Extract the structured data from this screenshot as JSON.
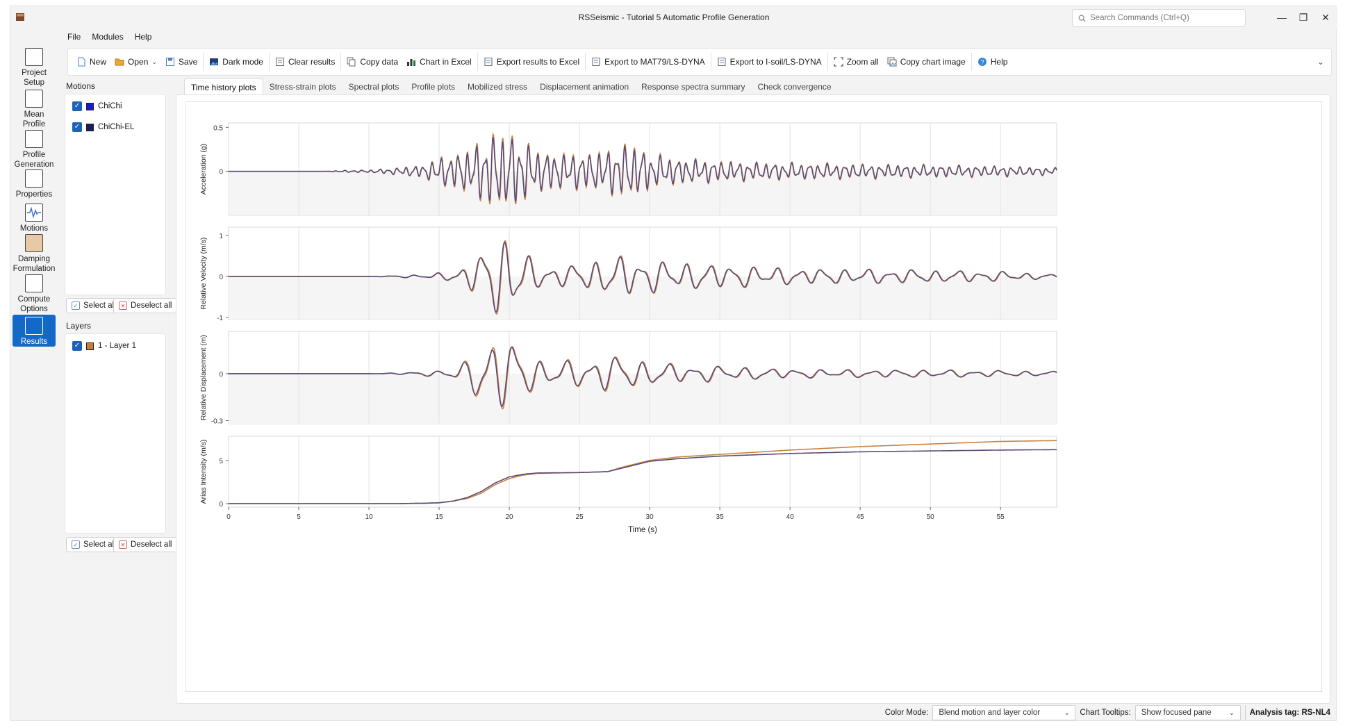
{
  "window": {
    "title": "RSSeismic - Tutorial 5 Automatic Profile Generation",
    "search_placeholder": "Search Commands (Ctrl+Q)",
    "minimize": "—",
    "restore": "❐",
    "close": "✕"
  },
  "menu": [
    "File",
    "Modules",
    "Help"
  ],
  "toolbar": {
    "new": "New",
    "open": "Open",
    "save": "Save",
    "dark_mode": "Dark mode",
    "clear_results": "Clear results",
    "copy_data": "Copy data",
    "chart_in_excel": "Chart in Excel",
    "export_excel": "Export results to Excel",
    "export_mat79": "Export to MAT79/LS-DYNA",
    "export_isoil": "Export to I-soil/LS-DYNA",
    "zoom_all": "Zoom all",
    "copy_chart_image": "Copy chart image",
    "help": "Help"
  },
  "nav": [
    {
      "label1": "Project",
      "label2": "Setup"
    },
    {
      "label1": "Mean",
      "label2": "Profile"
    },
    {
      "label1": "Profile",
      "label2": "Generation"
    },
    {
      "label1": "Properties",
      "label2": ""
    },
    {
      "label1": "Motions",
      "label2": ""
    },
    {
      "label1": "Damping",
      "label2": "Formulation"
    },
    {
      "label1": "Compute",
      "label2": "Options"
    },
    {
      "label1": "Results",
      "label2": ""
    }
  ],
  "motions_panel": {
    "title": "Motions",
    "items": [
      {
        "label": "ChiChi",
        "color": "#1a1ad6"
      },
      {
        "label": "ChiChi-EL",
        "color": "#1b1b5e"
      }
    ],
    "select_all": "Select all",
    "deselect_all": "Deselect all"
  },
  "layers_panel": {
    "title": "Layers",
    "items": [
      {
        "label": "1 - Layer 1",
        "color": "#c87b3e"
      }
    ],
    "select_all": "Select all",
    "deselect_all": "Deselect all"
  },
  "tabs": [
    "Time history plots",
    "Stress-strain plots",
    "Spectral plots",
    "Profile plots",
    "Mobilized stress",
    "Displacement animation",
    "Response spectra summary",
    "Check convergence"
  ],
  "status": {
    "color_mode_label": "Color Mode:",
    "color_mode_value": "Blend motion and layer color",
    "tooltips_label": "Chart Tooltips:",
    "tooltips_value": "Show focused pane",
    "analysis_tag": "Analysis tag: RS-NL4"
  },
  "colors": {
    "accent": "#1468c6",
    "series_chichi": "#c8823f",
    "series_chichi_el": "#5a4a78"
  },
  "chart_data": {
    "type": "line",
    "xlabel": "Time (s)",
    "xlim": [
      0,
      59
    ],
    "x_ticks": [
      0,
      5,
      10,
      15,
      20,
      25,
      30,
      35,
      40,
      45,
      50,
      55
    ],
    "series_names": [
      "ChiChi",
      "ChiChi-EL"
    ],
    "panels": [
      {
        "ylabel": "Acceleration (g)",
        "ylim": [
          -0.5,
          0.55
        ],
        "ytick_labels": [
          {
            "v": 0.5,
            "t": "0.5"
          },
          {
            "v": 0,
            "t": "0"
          }
        ],
        "env": [
          [
            0,
            0
          ],
          [
            7,
            0
          ],
          [
            8,
            0.01
          ],
          [
            10,
            0.015
          ],
          [
            12,
            0.04
          ],
          [
            14,
            0.08
          ],
          [
            15,
            0.16
          ],
          [
            16,
            0.2
          ],
          [
            17,
            0.25
          ],
          [
            18,
            0.35
          ],
          [
            19,
            0.45
          ],
          [
            20,
            0.45
          ],
          [
            21,
            0.35
          ],
          [
            22,
            0.25
          ],
          [
            24,
            0.2
          ],
          [
            26,
            0.22
          ],
          [
            27,
            0.25
          ],
          [
            28,
            0.3
          ],
          [
            29,
            0.32
          ],
          [
            30,
            0.2
          ],
          [
            32,
            0.15
          ],
          [
            35,
            0.12
          ],
          [
            38,
            0.1
          ],
          [
            42,
            0.09
          ],
          [
            46,
            0.08
          ],
          [
            50,
            0.07
          ],
          [
            55,
            0.06
          ],
          [
            59,
            0.04
          ]
        ],
        "freq": 1.6,
        "ratio2": 0.92
      },
      {
        "ylabel": "Relative Velocity (m/s)",
        "ylim": [
          -1.05,
          1.2
        ],
        "ytick_labels": [
          {
            "v": 1,
            "t": "1"
          },
          {
            "v": 0,
            "t": "0"
          },
          {
            "v": -1,
            "t": "-1"
          }
        ],
        "env": [
          [
            0,
            0
          ],
          [
            10,
            0
          ],
          [
            12,
            0.02
          ],
          [
            14,
            0.05
          ],
          [
            16,
            0.12
          ],
          [
            17,
            0.3
          ],
          [
            18,
            0.6
          ],
          [
            19,
            0.95
          ],
          [
            20,
            1.1
          ],
          [
            21,
            0.6
          ],
          [
            22,
            0.3
          ],
          [
            24,
            0.25
          ],
          [
            26,
            0.4
          ],
          [
            28,
            0.5
          ],
          [
            29,
            0.48
          ],
          [
            30,
            0.4
          ],
          [
            32,
            0.35
          ],
          [
            35,
            0.3
          ],
          [
            40,
            0.2
          ],
          [
            45,
            0.18
          ],
          [
            50,
            0.16
          ],
          [
            55,
            0.12
          ],
          [
            59,
            0.05
          ]
        ],
        "freq": 0.62,
        "ratio2": 0.98
      },
      {
        "ylabel": "Relative Displacement (m)",
        "ylim": [
          -0.32,
          0.27
        ],
        "ytick_labels": [
          {
            "v": 0,
            "t": "0"
          },
          {
            "v": -0.3,
            "t": "-0.3"
          }
        ],
        "env": [
          [
            0,
            0
          ],
          [
            10,
            0
          ],
          [
            12,
            0.005
          ],
          [
            15,
            0.02
          ],
          [
            17,
            0.08
          ],
          [
            18,
            0.22
          ],
          [
            19,
            0.26
          ],
          [
            20,
            0.24
          ],
          [
            21,
            0.15
          ],
          [
            22,
            0.1
          ],
          [
            24,
            0.08
          ],
          [
            26,
            0.11
          ],
          [
            28,
            0.12
          ],
          [
            29,
            0.1
          ],
          [
            30,
            0.08
          ],
          [
            32,
            0.06
          ],
          [
            35,
            0.05
          ],
          [
            40,
            0.03
          ],
          [
            45,
            0.025
          ],
          [
            50,
            0.025
          ],
          [
            55,
            0.02
          ],
          [
            59,
            0.015
          ]
        ],
        "freq": 0.55,
        "ratio2": 0.95
      },
      {
        "ylabel": "Arias Intensity (m/s)",
        "ylim": [
          -0.4,
          7.8
        ],
        "ytick_labels": [
          {
            "v": 5,
            "t": "5"
          },
          {
            "v": 0,
            "t": "0"
          }
        ],
        "cum1": [
          [
            0,
            0
          ],
          [
            12,
            0
          ],
          [
            14,
            0.05
          ],
          [
            15,
            0.1
          ],
          [
            16,
            0.3
          ],
          [
            17,
            0.6
          ],
          [
            18,
            1.2
          ],
          [
            19,
            2.2
          ],
          [
            20,
            2.9
          ],
          [
            21,
            3.3
          ],
          [
            22,
            3.5
          ],
          [
            25,
            3.6
          ],
          [
            27,
            3.7
          ],
          [
            28,
            4.2
          ],
          [
            29,
            4.6
          ],
          [
            30,
            5.0
          ],
          [
            32,
            5.4
          ],
          [
            35,
            5.7
          ],
          [
            40,
            6.2
          ],
          [
            45,
            6.6
          ],
          [
            50,
            6.9
          ],
          [
            55,
            7.2
          ],
          [
            59,
            7.3
          ]
        ],
        "cum2": [
          [
            0,
            0
          ],
          [
            12,
            0
          ],
          [
            14,
            0.05
          ],
          [
            15,
            0.1
          ],
          [
            16,
            0.3
          ],
          [
            17,
            0.7
          ],
          [
            18,
            1.4
          ],
          [
            19,
            2.4
          ],
          [
            20,
            3.1
          ],
          [
            21,
            3.4
          ],
          [
            22,
            3.55
          ],
          [
            25,
            3.6
          ],
          [
            27,
            3.7
          ],
          [
            28,
            4.1
          ],
          [
            29,
            4.5
          ],
          [
            30,
            4.9
          ],
          [
            32,
            5.2
          ],
          [
            35,
            5.5
          ],
          [
            40,
            5.8
          ],
          [
            45,
            6.0
          ],
          [
            50,
            6.1
          ],
          [
            55,
            6.2
          ],
          [
            59,
            6.25
          ]
        ]
      }
    ]
  }
}
